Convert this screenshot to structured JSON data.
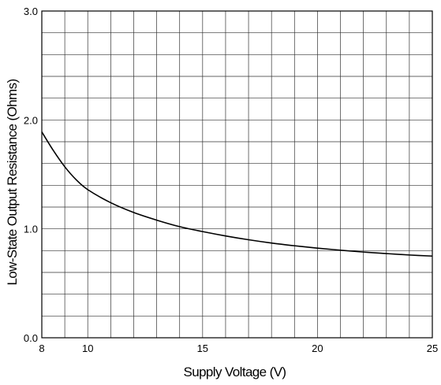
{
  "chart_data": {
    "type": "line",
    "title": "",
    "xlabel": "Supply Voltage (V)",
    "ylabel": "Low-State Output Resistance (Ohms)",
    "xlim": [
      8,
      25
    ],
    "ylim": [
      0.0,
      3.0
    ],
    "grid": true,
    "x_ticks": [
      8,
      10,
      15,
      20,
      25
    ],
    "x_tick_labels": [
      "8",
      "10",
      "15",
      "20",
      "25"
    ],
    "y_ticks": [
      0.0,
      1.0,
      2.0,
      3.0
    ],
    "y_tick_labels": [
      "0.0",
      "1.0",
      "2.0",
      "3.0"
    ],
    "x_grid_step": 1,
    "y_grid_step": 0.2,
    "series": [
      {
        "x": [
          8,
          8.5,
          9,
          9.5,
          10,
          11,
          12,
          13,
          14,
          15,
          16,
          17,
          18,
          19,
          20,
          21,
          22,
          23,
          24,
          25
        ],
        "values": [
          1.89,
          1.72,
          1.57,
          1.45,
          1.36,
          1.24,
          1.15,
          1.08,
          1.02,
          0.975,
          0.935,
          0.9,
          0.87,
          0.845,
          0.823,
          0.804,
          0.787,
          0.773,
          0.76,
          0.75
        ]
      }
    ]
  }
}
